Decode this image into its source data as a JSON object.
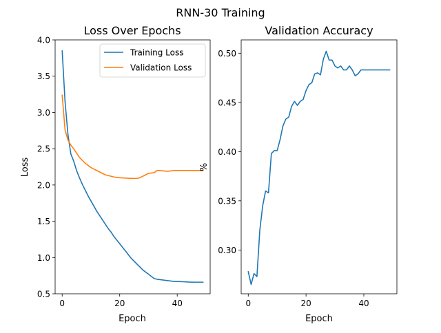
{
  "figure_title": "RNN-30 Training",
  "chart_data": [
    {
      "type": "line",
      "title": "Loss Over Epochs",
      "xlabel": "Epoch",
      "ylabel": "Loss",
      "xlim": [
        -2.45,
        51.45
      ],
      "ylim": [
        0.5,
        4.0
      ],
      "xticks": [
        0,
        20,
        40
      ],
      "yticks": [
        0.5,
        1.0,
        1.5,
        2.0,
        2.5,
        3.0,
        3.5,
        4.0
      ],
      "ytick_labels": [
        "0.5",
        "1.0",
        "1.5",
        "2.0",
        "2.5",
        "3.0",
        "3.5",
        "4.0"
      ],
      "legend_position": "upper right",
      "series": [
        {
          "name": "Training Loss",
          "color": "#1f77b4",
          "x": [
            0,
            1,
            2,
            3,
            4,
            5,
            6,
            7,
            8,
            9,
            10,
            11,
            12,
            13,
            14,
            15,
            16,
            17,
            18,
            19,
            20,
            21,
            22,
            23,
            24,
            25,
            26,
            27,
            28,
            29,
            30,
            31,
            32,
            33,
            34,
            35,
            36,
            37,
            38,
            39,
            40,
            41,
            42,
            43,
            44,
            45,
            46,
            47,
            48,
            49
          ],
          "values": [
            3.85,
            3.15,
            2.7,
            2.43,
            2.33,
            2.2,
            2.1,
            2.01,
            1.93,
            1.85,
            1.78,
            1.71,
            1.64,
            1.58,
            1.52,
            1.46,
            1.4,
            1.35,
            1.29,
            1.24,
            1.19,
            1.14,
            1.09,
            1.04,
            0.99,
            0.95,
            0.91,
            0.87,
            0.83,
            0.8,
            0.77,
            0.74,
            0.71,
            0.7,
            0.695,
            0.69,
            0.685,
            0.68,
            0.675,
            0.67,
            0.67,
            0.668,
            0.666,
            0.664,
            0.662,
            0.661,
            0.66,
            0.66,
            0.66,
            0.66
          ]
        },
        {
          "name": "Validation Loss",
          "color": "#ff7f0e",
          "x": [
            0,
            1,
            2,
            3,
            4,
            5,
            6,
            7,
            8,
            9,
            10,
            11,
            12,
            13,
            14,
            15,
            16,
            17,
            18,
            19,
            20,
            21,
            22,
            23,
            24,
            25,
            26,
            27,
            28,
            29,
            30,
            31,
            32,
            33,
            34,
            35,
            36,
            37,
            38,
            39,
            40,
            41,
            42,
            43,
            44,
            45,
            46,
            47,
            48,
            49
          ],
          "values": [
            3.24,
            2.76,
            2.62,
            2.55,
            2.5,
            2.44,
            2.38,
            2.34,
            2.3,
            2.27,
            2.24,
            2.22,
            2.2,
            2.18,
            2.16,
            2.14,
            2.13,
            2.12,
            2.11,
            2.105,
            2.1,
            2.098,
            2.095,
            2.093,
            2.092,
            2.09,
            2.09,
            2.1,
            2.12,
            2.14,
            2.16,
            2.165,
            2.17,
            2.2,
            2.2,
            2.195,
            2.19,
            2.19,
            2.195,
            2.2,
            2.2,
            2.2,
            2.2,
            2.2,
            2.2,
            2.2,
            2.2,
            2.2,
            2.2,
            2.2
          ]
        }
      ]
    },
    {
      "type": "line",
      "title": "Validation Accuracy",
      "xlabel": "Epoch",
      "ylabel": "%",
      "xlim": [
        -2.45,
        51.45
      ],
      "ylim": [
        0.2555,
        0.5135
      ],
      "xticks": [
        0,
        20,
        40
      ],
      "yticks": [
        0.3,
        0.35,
        0.4,
        0.45,
        0.5
      ],
      "ytick_labels": [
        "0.30",
        "0.35",
        "0.40",
        "0.45",
        "0.50"
      ],
      "series": [
        {
          "color": "#1f77b4",
          "x": [
            0,
            1,
            2,
            3,
            4,
            5,
            6,
            7,
            8,
            9,
            10,
            11,
            12,
            13,
            14,
            15,
            16,
            17,
            18,
            19,
            20,
            21,
            22,
            23,
            24,
            25,
            26,
            27,
            28,
            29,
            30,
            31,
            32,
            33,
            34,
            35,
            36,
            37,
            38,
            39,
            40,
            41,
            42,
            43,
            44,
            45,
            46,
            47,
            48,
            49
          ],
          "values": [
            0.278,
            0.265,
            0.276,
            0.273,
            0.32,
            0.345,
            0.36,
            0.358,
            0.398,
            0.401,
            0.401,
            0.412,
            0.426,
            0.433,
            0.435,
            0.446,
            0.451,
            0.447,
            0.451,
            0.453,
            0.462,
            0.468,
            0.47,
            0.479,
            0.48,
            0.478,
            0.494,
            0.502,
            0.493,
            0.493,
            0.487,
            0.485,
            0.487,
            0.483,
            0.483,
            0.487,
            0.483,
            0.477,
            0.479,
            0.483,
            0.483,
            0.483,
            0.483,
            0.483,
            0.483,
            0.483,
            0.483,
            0.483,
            0.483,
            0.483
          ]
        }
      ]
    }
  ]
}
